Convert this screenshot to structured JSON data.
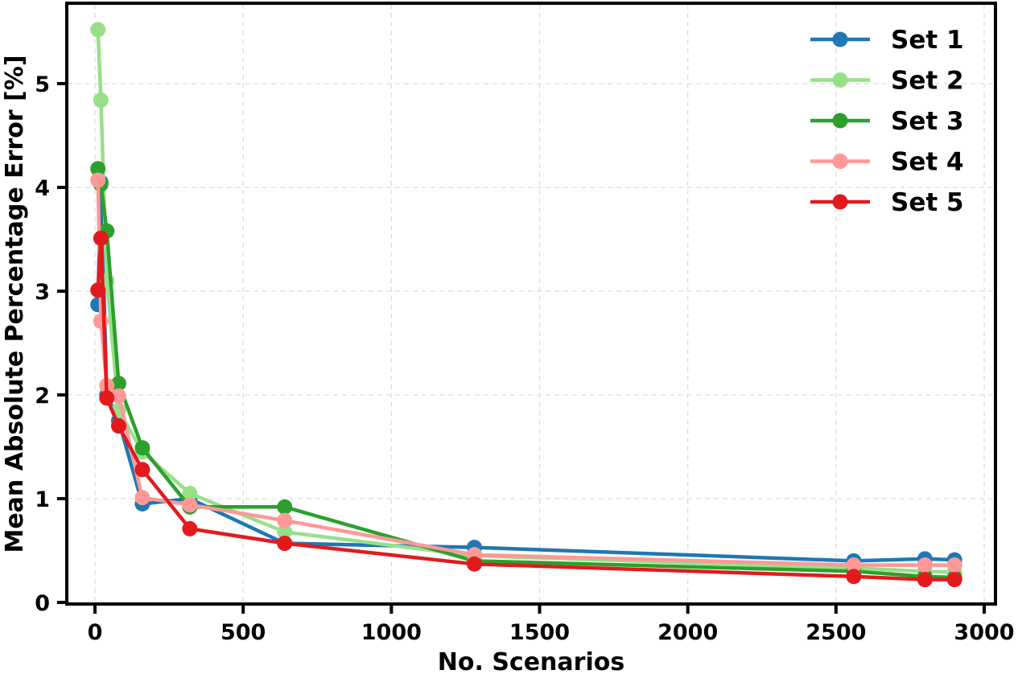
{
  "chart_data": {
    "type": "line",
    "title": "",
    "xlabel": "No. Scenarios",
    "ylabel": "Mean Absolute Percentage Error [%]",
    "xlim": [
      -80,
      3045
    ],
    "ylim": [
      -0.02,
      5.79
    ],
    "xticks": [
      0,
      500,
      1000,
      1500,
      2000,
      2500,
      3000
    ],
    "yticks": [
      0,
      1,
      2,
      3,
      4,
      5
    ],
    "grid": true,
    "legend_position": "upper right",
    "x": [
      10,
      20,
      40,
      80,
      160,
      320,
      640,
      1280,
      2560,
      2800,
      2900
    ],
    "series": [
      {
        "name": "Set 1",
        "color": "#1f77b4",
        "values": [
          2.87,
          4.05,
          2.0,
          1.75,
          0.95,
          1.0,
          0.57,
          0.53,
          0.4,
          0.42,
          0.41
        ]
      },
      {
        "name": "Set 2",
        "color": "#98df8a",
        "values": [
          5.52,
          4.84,
          3.1,
          1.85,
          1.45,
          1.05,
          0.68,
          0.45,
          0.33,
          0.3,
          0.29
        ]
      },
      {
        "name": "Set 3",
        "color": "#2ca02c",
        "values": [
          4.18,
          4.03,
          3.58,
          2.11,
          1.49,
          0.92,
          0.92,
          0.4,
          0.3,
          0.25,
          0.24
        ]
      },
      {
        "name": "Set 4",
        "color": "#ff9896",
        "values": [
          4.07,
          2.71,
          2.09,
          1.99,
          1.01,
          0.94,
          0.79,
          0.46,
          0.36,
          0.36,
          0.36
        ]
      },
      {
        "name": "Set 5",
        "color": "#e31a1c",
        "values": [
          3.01,
          3.51,
          1.97,
          1.7,
          1.28,
          0.71,
          0.57,
          0.37,
          0.25,
          0.22,
          0.22
        ]
      }
    ]
  }
}
